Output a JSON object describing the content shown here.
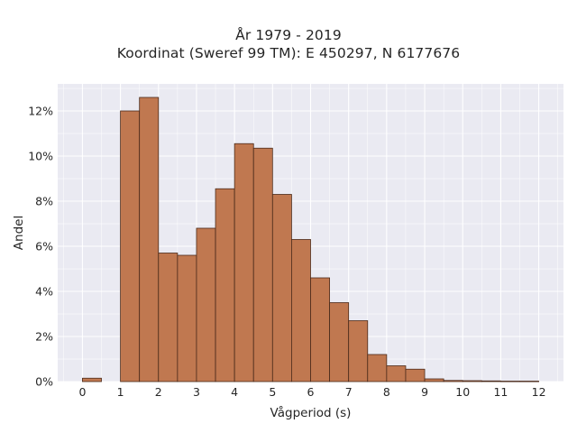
{
  "chart_data": {
    "type": "bar",
    "title": [
      "År 1979 - 2019",
      "Koordinat (Sweref 99 TM): E 450297, N 6177676"
    ],
    "xlabel": "Vågperiod (s)",
    "ylabel": "Andel",
    "x_ticks": [
      0,
      1,
      2,
      3,
      4,
      5,
      6,
      7,
      8,
      9,
      10,
      11,
      12
    ],
    "y_ticks": [
      0,
      2,
      4,
      6,
      8,
      10,
      12
    ],
    "y_tick_suffix": "%",
    "xlim": [
      -0.65,
      12.65
    ],
    "ylim": [
      0,
      13.2
    ],
    "bin_width": 0.5,
    "bins": [
      {
        "start": 0.0,
        "value": 0.15
      },
      {
        "start": 0.5,
        "value": 0.0
      },
      {
        "start": 1.0,
        "value": 12.0
      },
      {
        "start": 1.5,
        "value": 12.6
      },
      {
        "start": 2.0,
        "value": 5.7
      },
      {
        "start": 2.5,
        "value": 5.6
      },
      {
        "start": 3.0,
        "value": 6.8
      },
      {
        "start": 3.5,
        "value": 8.55
      },
      {
        "start": 4.0,
        "value": 10.55
      },
      {
        "start": 4.5,
        "value": 10.35
      },
      {
        "start": 5.0,
        "value": 8.3
      },
      {
        "start": 5.5,
        "value": 6.3
      },
      {
        "start": 6.0,
        "value": 4.6
      },
      {
        "start": 6.5,
        "value": 3.5
      },
      {
        "start": 7.0,
        "value": 2.7
      },
      {
        "start": 7.5,
        "value": 1.2
      },
      {
        "start": 8.0,
        "value": 0.7
      },
      {
        "start": 8.5,
        "value": 0.55
      },
      {
        "start": 9.0,
        "value": 0.12
      },
      {
        "start": 9.5,
        "value": 0.05
      },
      {
        "start": 10.0,
        "value": 0.04
      },
      {
        "start": 10.5,
        "value": 0.03
      },
      {
        "start": 11.0,
        "value": 0.02
      },
      {
        "start": 11.5,
        "value": 0.02
      }
    ],
    "grid": true,
    "bar_color": "#c07850",
    "edge_color": "#4a2a1a",
    "background_color": "#eaeaf2",
    "grid_color": "#ffffff"
  }
}
